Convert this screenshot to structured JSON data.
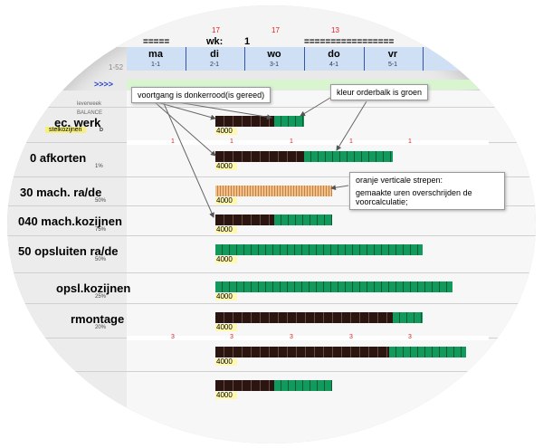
{
  "header": {
    "top_counts": [
      "17",
      "17",
      "13"
    ],
    "week_bar_left": "=====",
    "week_label": "wk:",
    "week_number": "1",
    "week_bar_right": "=================",
    "range": "1-52",
    "nav": ">>>>",
    "days": [
      {
        "name": "ma",
        "code": "1-1"
      },
      {
        "name": "di",
        "code": "2-1"
      },
      {
        "name": "wo",
        "code": "3-1"
      },
      {
        "name": "do",
        "code": "4-1"
      },
      {
        "name": "vr",
        "code": "5-1"
      }
    ]
  },
  "rows": [
    {
      "label": "ec. werk",
      "tag": "stelkozijnen",
      "tag_note": "b",
      "hours": "4000"
    },
    {
      "label": "0 afkorten",
      "percent": "1%",
      "hours": "4000"
    },
    {
      "label": "30 mach. ra/de",
      "percent": "50%",
      "hours": "4000"
    },
    {
      "label": "040 mach.kozijnen",
      "percent": "75%",
      "hours": "4000"
    },
    {
      "label": "50 opsluiten ra/de",
      "percent": "50%",
      "hours": "4000"
    },
    {
      "label": "opsl.kozijnen",
      "percent": "25%",
      "hours": "4000"
    },
    {
      "label": "rmontage",
      "percent": "20%",
      "hours": "4000"
    },
    {
      "hours": "4000"
    },
    {
      "hours": "4000"
    }
  ],
  "scale_marks": [
    {
      "row": 1,
      "marks": [
        "1",
        "1",
        "1",
        "1",
        "1"
      ]
    },
    {
      "row": 7,
      "marks": [
        "3",
        "3",
        "3",
        "3",
        "3"
      ]
    }
  ],
  "small_labels": {
    "week": "leverweek",
    "balance": "BALANCE"
  },
  "annotations": {
    "progress": "voortgang is donkerrood(is gereed)",
    "order_bar": "kleur orderbalk is groen",
    "orange_title": "oranje verticale strepen:",
    "orange_text": "gemaakte uren overschrijden de voorcalculatie;"
  }
}
